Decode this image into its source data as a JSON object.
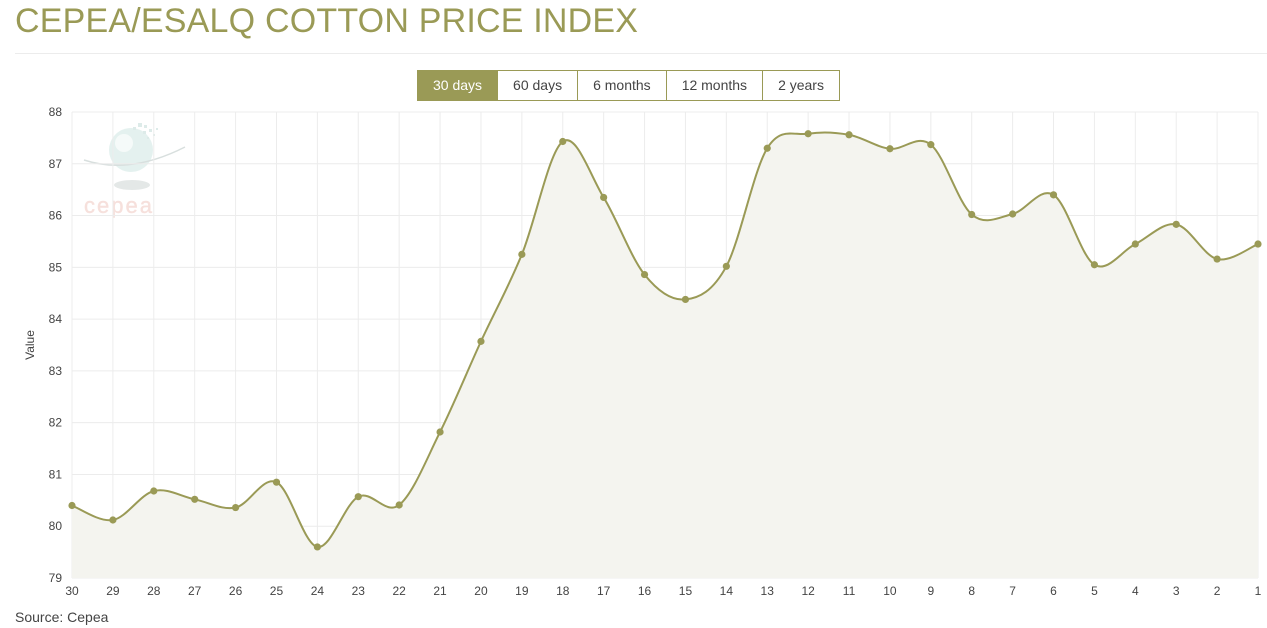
{
  "page_title": "CEPEA/ESALQ COTTON PRICE INDEX",
  "range_tabs": [
    {
      "label": "30 days",
      "active": true
    },
    {
      "label": "60 days",
      "active": false
    },
    {
      "label": "6 months",
      "active": false
    },
    {
      "label": "12 months",
      "active": false
    },
    {
      "label": "2 years",
      "active": false
    }
  ],
  "watermark": {
    "text": "cepea"
  },
  "source_note": "Source: Cepea",
  "colors": {
    "accent": "#9a9a56",
    "line": "#9a9a56",
    "area_fill": "#f4f4ef",
    "grid": "#ececec",
    "watermark_text": "#f0c8c0"
  },
  "chart_data": {
    "type": "area",
    "ylabel": "Value",
    "xlabel": "",
    "ylim": [
      79,
      88
    ],
    "yticks": [
      79,
      80,
      81,
      82,
      83,
      84,
      85,
      86,
      87,
      88
    ],
    "categories": [
      "30",
      "29",
      "28",
      "27",
      "26",
      "25",
      "24",
      "23",
      "22",
      "21",
      "20",
      "19",
      "18",
      "17",
      "16",
      "15",
      "14",
      "13",
      "12",
      "11",
      "10",
      "9",
      "8",
      "7",
      "6",
      "5",
      "4",
      "3",
      "2",
      "1"
    ],
    "values": [
      80.4,
      80.12,
      80.68,
      80.52,
      80.36,
      80.85,
      79.6,
      80.57,
      80.41,
      81.82,
      83.57,
      85.25,
      87.43,
      86.35,
      84.86,
      84.38,
      85.02,
      87.3,
      87.58,
      87.56,
      87.29,
      87.37,
      86.02,
      86.03,
      86.4,
      85.05,
      85.45,
      85.83,
      85.16,
      85.45
    ],
    "grid": true,
    "legend": "none"
  }
}
